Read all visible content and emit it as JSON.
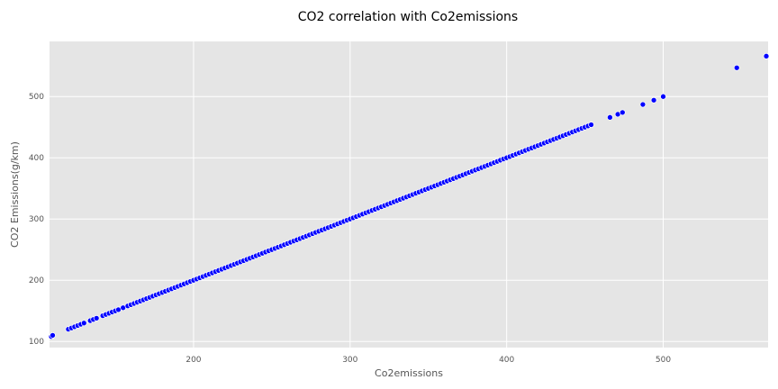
{
  "chart_data": {
    "type": "scatter",
    "title": "CO2 correlation with Co2emissions",
    "xlabel": "Co2emissions",
    "ylabel": "CO2 Emissions(g/km)",
    "xlim": [
      108,
      567
    ],
    "ylim": [
      90,
      590
    ],
    "xticks": [
      200,
      300,
      400,
      500
    ],
    "yticks": [
      100,
      200,
      300,
      400,
      500
    ],
    "grid": true,
    "point_color": "#0000ff",
    "point_edge_color": "#ffffff",
    "background_color": "#e5e5e5",
    "x": [
      108,
      110,
      120,
      122,
      124,
      126,
      128,
      130,
      134,
      136,
      138,
      142,
      144,
      146,
      148,
      150,
      152,
      155,
      158,
      160,
      162,
      164,
      166,
      168,
      170,
      172,
      174,
      176,
      178,
      180,
      182,
      184,
      186,
      188,
      190,
      192,
      194,
      196,
      198,
      200,
      202,
      204,
      206,
      208,
      210,
      212,
      214,
      216,
      218,
      220,
      222,
      224,
      226,
      228,
      230,
      232,
      234,
      236,
      238,
      240,
      242,
      244,
      246,
      248,
      250,
      252,
      254,
      256,
      258,
      260,
      262,
      264,
      266,
      268,
      270,
      272,
      274,
      276,
      278,
      280,
      282,
      284,
      286,
      288,
      290,
      292,
      294,
      296,
      298,
      300,
      302,
      304,
      306,
      308,
      310,
      312,
      314,
      316,
      318,
      320,
      322,
      324,
      326,
      328,
      330,
      332,
      334,
      336,
      338,
      340,
      342,
      344,
      346,
      348,
      350,
      352,
      354,
      356,
      358,
      360,
      362,
      364,
      366,
      368,
      370,
      372,
      374,
      376,
      378,
      380,
      382,
      384,
      386,
      388,
      390,
      392,
      394,
      396,
      398,
      400,
      402,
      404,
      406,
      408,
      410,
      412,
      414,
      416,
      418,
      420,
      422,
      424,
      426,
      428,
      430,
      432,
      434,
      436,
      438,
      440,
      442,
      444,
      446,
      448,
      450,
      452,
      454,
      466,
      471,
      474,
      487,
      494,
      500,
      547,
      566
    ],
    "y": [
      108,
      110,
      120,
      122,
      124,
      126,
      128,
      130,
      134,
      136,
      138,
      142,
      144,
      146,
      148,
      150,
      152,
      155,
      158,
      160,
      162,
      164,
      166,
      168,
      170,
      172,
      174,
      176,
      178,
      180,
      182,
      184,
      186,
      188,
      190,
      192,
      194,
      196,
      198,
      200,
      202,
      204,
      206,
      208,
      210,
      212,
      214,
      216,
      218,
      220,
      222,
      224,
      226,
      228,
      230,
      232,
      234,
      236,
      238,
      240,
      242,
      244,
      246,
      248,
      250,
      252,
      254,
      256,
      258,
      260,
      262,
      264,
      266,
      268,
      270,
      272,
      274,
      276,
      278,
      280,
      282,
      284,
      286,
      288,
      290,
      292,
      294,
      296,
      298,
      300,
      302,
      304,
      306,
      308,
      310,
      312,
      314,
      316,
      318,
      320,
      322,
      324,
      326,
      328,
      330,
      332,
      334,
      336,
      338,
      340,
      342,
      344,
      346,
      348,
      350,
      352,
      354,
      356,
      358,
      360,
      362,
      364,
      366,
      368,
      370,
      372,
      374,
      376,
      378,
      380,
      382,
      384,
      386,
      388,
      390,
      392,
      394,
      396,
      398,
      400,
      402,
      404,
      406,
      408,
      410,
      412,
      414,
      416,
      418,
      420,
      422,
      424,
      426,
      428,
      430,
      432,
      434,
      436,
      438,
      440,
      442,
      444,
      446,
      448,
      450,
      452,
      454,
      466,
      471,
      474,
      487,
      494,
      500,
      547,
      566
    ]
  }
}
